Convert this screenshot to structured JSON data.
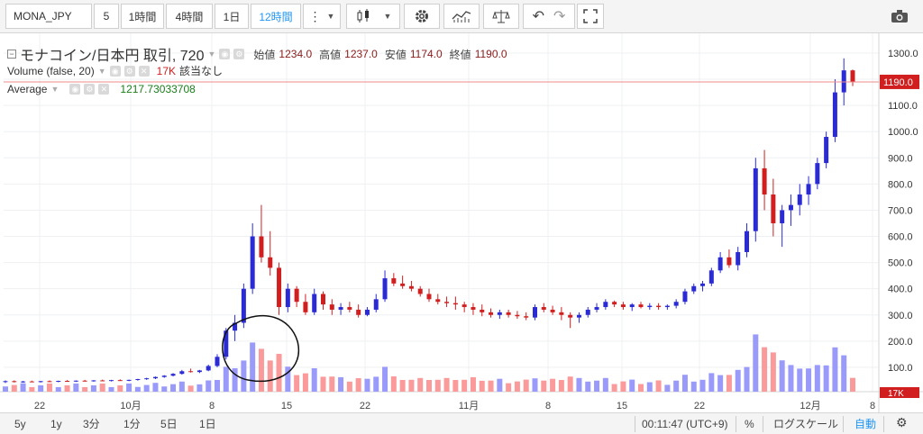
{
  "toolbar": {
    "symbol": "MONA_JPY",
    "compare": "5",
    "intervals": [
      "1時間",
      "4時間",
      "1日",
      "12時間"
    ],
    "active_interval": "12時間"
  },
  "legend": {
    "main": {
      "name": "モナコイン/日本円 取引, 720",
      "ohlc": [
        {
          "label": "始値",
          "value": "1234.0"
        },
        {
          "label": "高値",
          "value": "1237.0"
        },
        {
          "label": "安値",
          "value": "1174.0"
        },
        {
          "label": "終値",
          "value": "1190.0"
        }
      ]
    },
    "volume": {
      "name": "Volume (false, 20)",
      "value": "17K",
      "note": "該当なし"
    },
    "average": {
      "name": "Average",
      "value": "1217.73033708"
    }
  },
  "chart_data": {
    "type": "candlestick",
    "price_axis": {
      "min": 0,
      "max": 1300,
      "ticks": [
        "100.0",
        "200.0",
        "300.0",
        "400.0",
        "500.0",
        "600.0",
        "700.0",
        "800.0",
        "900.0",
        "1000.0",
        "1100.0",
        "1200.0",
        "1300.0"
      ],
      "current_price": "1190.0",
      "volume_label": "17K"
    },
    "time_axis": {
      "ticks": [
        "22",
        "10月",
        "8",
        "15",
        "22",
        "11月",
        "8",
        "15",
        "22",
        "12月",
        "8"
      ]
    },
    "ohlc_series": [
      [
        45,
        50,
        40,
        47
      ],
      [
        47,
        50,
        42,
        44
      ],
      [
        44,
        48,
        41,
        46
      ],
      [
        46,
        49,
        43,
        45
      ],
      [
        45,
        48,
        42,
        47
      ],
      [
        47,
        50,
        44,
        46
      ],
      [
        46,
        49,
        43,
        48
      ],
      [
        48,
        51,
        45,
        47
      ],
      [
        47,
        50,
        44,
        49
      ],
      [
        49,
        52,
        46,
        48
      ],
      [
        48,
        51,
        45,
        50
      ],
      [
        50,
        53,
        47,
        49
      ],
      [
        49,
        52,
        46,
        51
      ],
      [
        51,
        54,
        48,
        50
      ],
      [
        50,
        53,
        47,
        52
      ],
      [
        52,
        56,
        49,
        55
      ],
      [
        55,
        60,
        52,
        58
      ],
      [
        58,
        65,
        55,
        63
      ],
      [
        63,
        70,
        60,
        68
      ],
      [
        68,
        78,
        65,
        75
      ],
      [
        75,
        90,
        72,
        85
      ],
      [
        85,
        95,
        80,
        82
      ],
      [
        82,
        90,
        78,
        88
      ],
      [
        88,
        110,
        85,
        105
      ],
      [
        105,
        150,
        100,
        140
      ],
      [
        140,
        250,
        130,
        240
      ],
      [
        240,
        300,
        200,
        270
      ],
      [
        270,
        420,
        250,
        400
      ],
      [
        400,
        650,
        380,
        600
      ],
      [
        600,
        720,
        500,
        520
      ],
      [
        520,
        620,
        450,
        480
      ],
      [
        480,
        500,
        300,
        330
      ],
      [
        330,
        420,
        310,
        400
      ],
      [
        400,
        410,
        330,
        350
      ],
      [
        350,
        380,
        300,
        310
      ],
      [
        310,
        400,
        300,
        380
      ],
      [
        380,
        390,
        320,
        340
      ],
      [
        340,
        360,
        300,
        320
      ],
      [
        320,
        345,
        300,
        330
      ],
      [
        330,
        350,
        310,
        320
      ],
      [
        320,
        340,
        290,
        300
      ],
      [
        300,
        330,
        295,
        320
      ],
      [
        320,
        380,
        310,
        360
      ],
      [
        360,
        470,
        350,
        440
      ],
      [
        440,
        460,
        410,
        420
      ],
      [
        420,
        450,
        400,
        410
      ],
      [
        410,
        430,
        390,
        400
      ],
      [
        400,
        410,
        370,
        380
      ],
      [
        380,
        400,
        350,
        360
      ],
      [
        360,
        380,
        340,
        350
      ],
      [
        350,
        370,
        330,
        345
      ],
      [
        345,
        370,
        320,
        340
      ],
      [
        340,
        350,
        310,
        330
      ],
      [
        330,
        345,
        300,
        320
      ],
      [
        320,
        340,
        295,
        310
      ],
      [
        310,
        325,
        290,
        300
      ],
      [
        300,
        320,
        285,
        310
      ],
      [
        310,
        320,
        290,
        300
      ],
      [
        300,
        315,
        285,
        295
      ],
      [
        295,
        310,
        280,
        290
      ],
      [
        290,
        340,
        280,
        330
      ],
      [
        330,
        345,
        310,
        320
      ],
      [
        320,
        335,
        300,
        310
      ],
      [
        310,
        330,
        280,
        300
      ],
      [
        300,
        310,
        250,
        290
      ],
      [
        290,
        310,
        270,
        300
      ],
      [
        300,
        330,
        290,
        320
      ],
      [
        320,
        345,
        310,
        330
      ],
      [
        330,
        360,
        320,
        350
      ],
      [
        350,
        355,
        330,
        340
      ],
      [
        340,
        350,
        320,
        330
      ],
      [
        330,
        345,
        315,
        340
      ],
      [
        340,
        350,
        325,
        330
      ],
      [
        330,
        345,
        320,
        335
      ],
      [
        335,
        345,
        320,
        330
      ],
      [
        330,
        340,
        320,
        335
      ],
      [
        335,
        360,
        325,
        350
      ],
      [
        350,
        400,
        340,
        390
      ],
      [
        390,
        420,
        380,
        410
      ],
      [
        410,
        430,
        390,
        420
      ],
      [
        420,
        480,
        410,
        470
      ],
      [
        470,
        540,
        460,
        520
      ],
      [
        520,
        550,
        480,
        490
      ],
      [
        490,
        560,
        470,
        540
      ],
      [
        540,
        650,
        520,
        620
      ],
      [
        620,
        900,
        580,
        860
      ],
      [
        860,
        930,
        700,
        760
      ],
      [
        760,
        820,
        600,
        650
      ],
      [
        650,
        720,
        560,
        700
      ],
      [
        700,
        760,
        640,
        720
      ],
      [
        720,
        800,
        680,
        760
      ],
      [
        760,
        830,
        720,
        800
      ],
      [
        800,
        900,
        780,
        880
      ],
      [
        880,
        1000,
        860,
        980
      ],
      [
        980,
        1200,
        960,
        1150
      ],
      [
        1150,
        1280,
        1100,
        1234
      ],
      [
        1234,
        1237,
        1174,
        1190
      ]
    ],
    "average_value": 1217.73033708
  },
  "bottombar": {
    "ranges": [
      "5y",
      "1y",
      "3分",
      "1分",
      "5日",
      "1日"
    ],
    "time": "00:11:47 (UTC+9)",
    "percent": "%",
    "log": "ログスケール",
    "auto": "自動"
  },
  "colors": {
    "up": "#2b2bd6",
    "down": "#d11f1f",
    "vol_up": "#9a9afb",
    "vol_down": "#fb9a9a",
    "average": "#1a7d1a"
  }
}
